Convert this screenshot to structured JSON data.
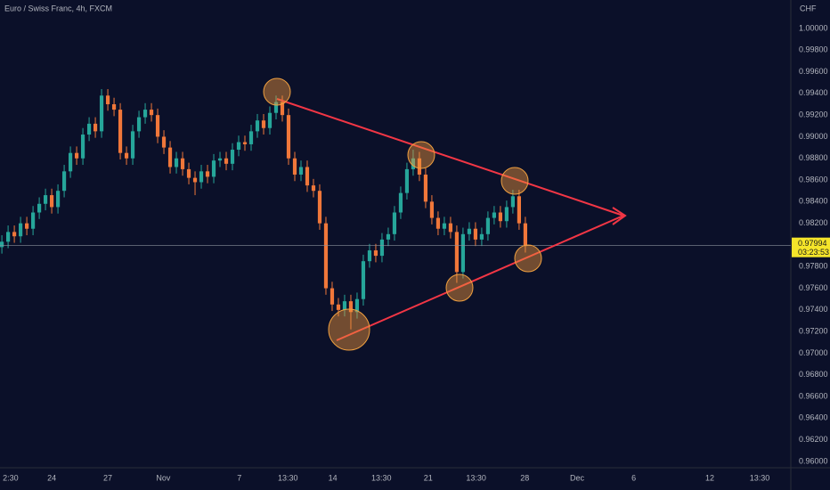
{
  "chart_data": {
    "type": "candlestick",
    "title": "Euro / Swiss Franc, 4h, FXCM",
    "y_axis_label": "CHF",
    "up_color": "#26a69a",
    "down_color": "#f0773a",
    "grid": false,
    "open": [
      0.9798,
      0.9803,
      0.9812,
      0.9808,
      0.982,
      0.9815,
      0.983,
      0.9838,
      0.9846,
      0.9835,
      0.985,
      0.9868,
      0.9885,
      0.988,
      0.9902,
      0.9912,
      0.9905,
      0.9938,
      0.993,
      0.9925,
      0.9885,
      0.988,
      0.9905,
      0.9918,
      0.9925,
      0.992,
      0.99,
      0.989,
      0.9872,
      0.988,
      0.987,
      0.9862,
      0.9858,
      0.9868,
      0.9863,
      0.9878,
      0.988,
      0.9875,
      0.9888,
      0.9895,
      0.9893,
      0.9905,
      0.9915,
      0.9908,
      0.9922,
      0.9932,
      0.992,
      0.988,
      0.9865,
      0.9872,
      0.9855,
      0.985,
      0.982,
      0.976,
      0.9745,
      0.974,
      0.9748,
      0.9738,
      0.975,
      0.9785,
      0.9795,
      0.979,
      0.9805,
      0.981,
      0.983,
      0.9848,
      0.987,
      0.988,
      0.9865,
      0.984,
      0.9825,
      0.9815,
      0.982,
      0.9812,
      0.9775,
      0.981,
      0.9815,
      0.9805,
      0.981,
      0.9825,
      0.983,
      0.9822,
      0.9835,
      0.9845,
      0.982
    ],
    "high": [
      0.9809,
      0.9818,
      0.9818,
      0.9826,
      0.9826,
      0.9836,
      0.9844,
      0.9852,
      0.9852,
      0.9856,
      0.9874,
      0.9891,
      0.9891,
      0.9908,
      0.9918,
      0.9918,
      0.9944,
      0.9944,
      0.9936,
      0.9931,
      0.9891,
      0.9911,
      0.9924,
      0.9931,
      0.9931,
      0.9926,
      0.9906,
      0.9896,
      0.9886,
      0.9886,
      0.9876,
      0.9868,
      0.9874,
      0.9874,
      0.9884,
      0.9886,
      0.9886,
      0.9894,
      0.9901,
      0.9901,
      0.9911,
      0.9921,
      0.9921,
      0.9928,
      0.9938,
      0.9938,
      0.9926,
      0.9886,
      0.9878,
      0.9878,
      0.9861,
      0.9856,
      0.9826,
      0.9766,
      0.9751,
      0.9754,
      0.9754,
      0.9756,
      0.9791,
      0.9801,
      0.9801,
      0.9811,
      0.9816,
      0.9836,
      0.9854,
      0.9876,
      0.9888,
      0.9886,
      0.9871,
      0.9846,
      0.9831,
      0.9826,
      0.9826,
      0.9818,
      0.9816,
      0.9821,
      0.9821,
      0.9816,
      0.9831,
      0.9836,
      0.9836,
      0.9841,
      0.9851,
      0.9851,
      0.9826
    ],
    "low": [
      0.9792,
      0.9797,
      0.9802,
      0.9802,
      0.9809,
      0.9809,
      0.9824,
      0.9832,
      0.9829,
      0.9829,
      0.9844,
      0.9862,
      0.9874,
      0.9874,
      0.9896,
      0.9899,
      0.9899,
      0.9924,
      0.9919,
      0.9879,
      0.9874,
      0.9874,
      0.9899,
      0.9912,
      0.9914,
      0.9894,
      0.9884,
      0.9866,
      0.9866,
      0.9864,
      0.9856,
      0.9846,
      0.9852,
      0.9857,
      0.9857,
      0.9872,
      0.9869,
      0.9869,
      0.9882,
      0.9887,
      0.9887,
      0.9899,
      0.9902,
      0.9902,
      0.9916,
      0.9914,
      0.9874,
      0.9859,
      0.9859,
      0.9849,
      0.9844,
      0.9814,
      0.9754,
      0.9739,
      0.9734,
      0.9734,
      0.9722,
      0.9732,
      0.9744,
      0.9779,
      0.9784,
      0.9784,
      0.9799,
      0.9804,
      0.9824,
      0.9842,
      0.9864,
      0.9859,
      0.9834,
      0.9819,
      0.9809,
      0.9809,
      0.9806,
      0.9765,
      0.9769,
      0.9804,
      0.9799,
      0.9799,
      0.9804,
      0.9819,
      0.9816,
      0.9816,
      0.9829,
      0.9814,
      0.9793
    ],
    "close": [
      0.9803,
      0.9812,
      0.9808,
      0.982,
      0.9815,
      0.983,
      0.9838,
      0.9846,
      0.9835,
      0.985,
      0.9868,
      0.9885,
      0.988,
      0.9902,
      0.9912,
      0.9905,
      0.9938,
      0.993,
      0.9925,
      0.9885,
      0.988,
      0.9905,
      0.9918,
      0.9925,
      0.992,
      0.99,
      0.989,
      0.9872,
      0.988,
      0.987,
      0.9862,
      0.9858,
      0.9868,
      0.9863,
      0.9878,
      0.988,
      0.9875,
      0.9888,
      0.9895,
      0.9893,
      0.9905,
      0.9915,
      0.9908,
      0.9922,
      0.9932,
      0.992,
      0.988,
      0.9865,
      0.9872,
      0.9855,
      0.985,
      0.982,
      0.976,
      0.9745,
      0.974,
      0.9748,
      0.9738,
      0.975,
      0.9785,
      0.9795,
      0.979,
      0.9805,
      0.981,
      0.983,
      0.9848,
      0.987,
      0.988,
      0.9865,
      0.984,
      0.9825,
      0.9815,
      0.982,
      0.9812,
      0.9775,
      0.981,
      0.9815,
      0.9805,
      0.981,
      0.9825,
      0.983,
      0.9822,
      0.9835,
      0.9845,
      0.982,
      0.9799
    ],
    "last_price": {
      "value": 0.97994,
      "label": "0.97994"
    },
    "countdown": "03:23:53",
    "xlim": [
      -0.3,
      126.6
    ],
    "xticks": [
      {
        "value": 1.4,
        "label": "2:30"
      },
      {
        "value": 8,
        "label": "24"
      },
      {
        "value": 17,
        "label": "27"
      },
      {
        "value": 25.9,
        "label": "Nov"
      },
      {
        "value": 38.1,
        "label": "7"
      },
      {
        "value": 45.9,
        "label": "13:30"
      },
      {
        "value": 53.1,
        "label": "14"
      },
      {
        "value": 60.9,
        "label": "13:30"
      },
      {
        "value": 68.4,
        "label": "21"
      },
      {
        "value": 76.1,
        "label": "13:30"
      },
      {
        "value": 83.9,
        "label": "28"
      },
      {
        "value": 92.3,
        "label": "Dec"
      },
      {
        "value": 101.4,
        "label": "6"
      },
      {
        "value": 113.6,
        "label": "12"
      },
      {
        "value": 121.6,
        "label": "13:30"
      }
    ],
    "ylim": [
      0.95942,
      1.00263
    ],
    "yticks": [
      {
        "value": 1.0,
        "label": "1.00000"
      },
      {
        "value": 0.998,
        "label": "0.99800"
      },
      {
        "value": 0.996,
        "label": "0.99600"
      },
      {
        "value": 0.994,
        "label": "0.99400"
      },
      {
        "value": 0.992,
        "label": "0.99200"
      },
      {
        "value": 0.99,
        "label": "0.99000"
      },
      {
        "value": 0.988,
        "label": "0.98800"
      },
      {
        "value": 0.986,
        "label": "0.98600"
      },
      {
        "value": 0.984,
        "label": "0.98400"
      },
      {
        "value": 0.982,
        "label": "0.98200"
      },
      {
        "value": 0.98,
        "label": "0.98000"
      },
      {
        "value": 0.978,
        "label": "0.97800"
      },
      {
        "value": 0.976,
        "label": "0.97600"
      },
      {
        "value": 0.974,
        "label": "0.97400"
      },
      {
        "value": 0.972,
        "label": "0.97200"
      },
      {
        "value": 0.97,
        "label": "0.97000"
      },
      {
        "value": 0.968,
        "label": "0.96800"
      },
      {
        "value": 0.966,
        "label": "0.96600"
      },
      {
        "value": 0.964,
        "label": "0.96400"
      },
      {
        "value": 0.962,
        "label": "0.96200"
      },
      {
        "value": 0.96,
        "label": "0.96000"
      }
    ]
  }
}
